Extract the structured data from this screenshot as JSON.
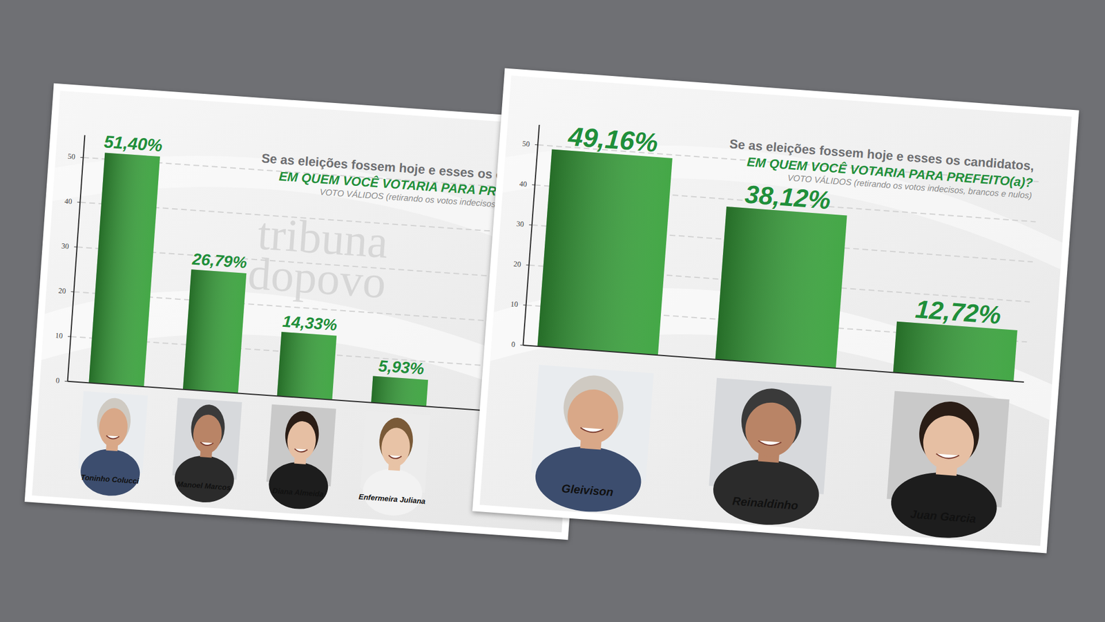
{
  "chart_data": [
    {
      "type": "bar",
      "title": "Se as eleições fossem hoje e esses os candidatos,",
      "subtitle": "EM QUEM VOCÊ VOTARIA PARA PREFEITO(a)?",
      "annotations": [
        "VOTO VÁLIDOS (retirando os votos indecisos, brancos e nulos)",
        "tribuna",
        "dopovo"
      ],
      "categories": [
        "Toninho Colucci",
        "Manoel Marcos",
        "Diana Almeida",
        "Enfermeira Juliana"
      ],
      "values": [
        51.4,
        26.79,
        14.33,
        5.93
      ],
      "value_labels": [
        "51,40%",
        "26,79%",
        "14,33%",
        "5,93%"
      ],
      "color": "#38a23b",
      "ylim": [
        0,
        55
      ],
      "yticks": [
        0,
        10,
        20,
        30,
        40,
        50
      ],
      "grid": true,
      "data_labels": true
    },
    {
      "type": "bar",
      "title": "Se as eleições fossem hoje e esses os candidatos,",
      "subtitle": "EM QUEM VOCÊ VOTARIA PARA PREFEITO(a)?",
      "annotations": [
        "VOTO VÁLIDOS (retirando os votos indecisos, brancos e nulos)"
      ],
      "categories": [
        "Gleivison",
        "Reinaldinho",
        "Juan Garcia"
      ],
      "values": [
        49.16,
        38.12,
        12.72
      ],
      "value_labels": [
        "49,16%",
        "38,12%",
        "12,72%"
      ],
      "color": "#38a23b",
      "ylim": [
        0,
        55
      ],
      "yticks": [
        0,
        10,
        20,
        30,
        40,
        50
      ],
      "grid": true,
      "data_labels": true
    }
  ]
}
